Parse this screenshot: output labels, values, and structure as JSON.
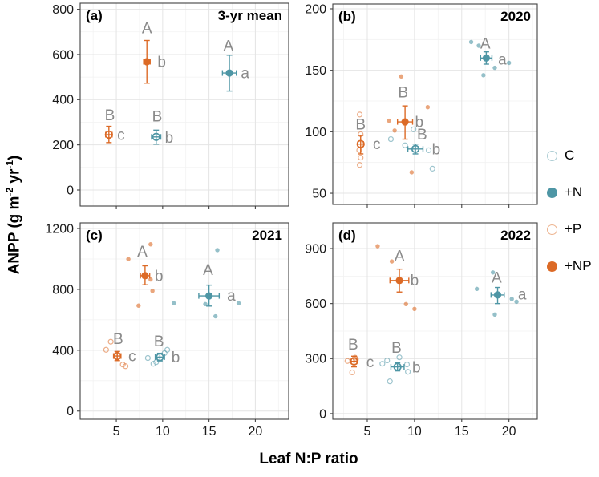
{
  "figure": {
    "xlabel": "Leaf N:P ratio",
    "ylabel": {
      "p0": "ANPP (g m",
      "s0": "-2",
      "p1": " yr",
      "s1": "-1",
      "p2": ")"
    }
  },
  "colors": {
    "teal": "#4E96A5",
    "orange": "#DC6A26",
    "teal_light": "#A9CBD2",
    "orange_light": "#EDB38E",
    "sig_letter": "#8A8A8A",
    "grid_major": "#E4E4E4",
    "grid_minor": "#F2F2F2",
    "axis_border": "#424242",
    "tick_text": "#1A1A1A",
    "title_text": "#000000"
  },
  "treatments": {
    "C": {
      "color": "teal",
      "filled": false
    },
    "+N": {
      "color": "teal",
      "filled": true
    },
    "+P": {
      "color": "orange",
      "filled": false
    },
    "+NP": {
      "color": "orange",
      "filled": true
    }
  },
  "legend": {
    "items": [
      {
        "label": "C",
        "treatment": "C"
      },
      {
        "label": "+N",
        "treatment": "+N"
      },
      {
        "label": "+P",
        "treatment": "+P"
      },
      {
        "label": "+NP",
        "treatment": "+NP"
      }
    ]
  },
  "chart_data": [
    {
      "id": "a",
      "tag": "(a)",
      "title": "3-yr mean",
      "type": "scatter",
      "xlim": [
        1.1,
        23.6
      ],
      "ylim": [
        -71,
        827
      ],
      "xticks": [
        5,
        10,
        15,
        20
      ],
      "yticks": [
        0,
        200,
        400,
        600,
        800
      ],
      "xtick_labels_visible": false,
      "means": [
        {
          "treatment": "+P",
          "x": 4.2,
          "y": 245,
          "ylo": 210,
          "yhi": 282,
          "xlo": 3.85,
          "xhi": 4.55,
          "letters": [
            {
              "text": "B",
              "x": 4.3,
              "y": 332
            },
            {
              "text": "c",
              "x": 5.5,
              "y": 245
            }
          ]
        },
        {
          "treatment": "+NP",
          "x": 8.3,
          "y": 568,
          "ylo": 473,
          "yhi": 662,
          "xlo": 7.95,
          "xhi": 8.65,
          "letters": [
            {
              "text": "A",
              "x": 8.3,
              "y": 717
            },
            {
              "text": "b",
              "x": 9.9,
              "y": 568
            }
          ]
        },
        {
          "treatment": "C",
          "x": 9.3,
          "y": 235,
          "ylo": 203,
          "yhi": 265,
          "xlo": 8.8,
          "xhi": 9.8,
          "letters": [
            {
              "text": "B",
              "x": 9.4,
              "y": 327
            },
            {
              "text": "b",
              "x": 10.7,
              "y": 233
            }
          ]
        },
        {
          "treatment": "+N",
          "x": 17.2,
          "y": 518,
          "ylo": 438,
          "yhi": 597,
          "xlo": 16.45,
          "xhi": 17.95,
          "letters": [
            {
              "text": "A",
              "x": 17.1,
              "y": 638
            },
            {
              "text": "a",
              "x": 18.9,
              "y": 518
            }
          ]
        }
      ],
      "points": []
    },
    {
      "id": "b",
      "tag": "(b)",
      "title": "2020",
      "type": "scatter",
      "xlim": [
        1.35,
        23.0
      ],
      "ylim": [
        40.9,
        203.9
      ],
      "xticks": [
        5,
        10,
        15,
        20
      ],
      "yticks": [
        50,
        100,
        150,
        200
      ],
      "xtick_labels_visible": false,
      "means": [
        {
          "treatment": "+P",
          "x": 4.3,
          "y": 90,
          "ylo": 82,
          "yhi": 97,
          "xlo": 4.0,
          "xhi": 4.6,
          "letters": [
            {
              "text": "B",
              "x": 4.3,
              "y": 106
            },
            {
              "text": "c",
              "x": 6.0,
              "y": 90
            }
          ]
        },
        {
          "treatment": "+NP",
          "x": 9.0,
          "y": 108,
          "ylo": 94,
          "yhi": 121,
          "xlo": 8.2,
          "xhi": 9.8,
          "letters": [
            {
              "text": "B",
              "x": 8.8,
              "y": 132
            },
            {
              "text": "b",
              "x": 10.5,
              "y": 108
            }
          ]
        },
        {
          "treatment": "C",
          "x": 10.1,
          "y": 86,
          "ylo": 82,
          "yhi": 90,
          "xlo": 9.3,
          "xhi": 10.9,
          "letters": [
            {
              "text": "B",
              "x": 10.8,
              "y": 98
            },
            {
              "text": "b",
              "x": 12.3,
              "y": 86
            }
          ]
        },
        {
          "treatment": "+N",
          "x": 17.6,
          "y": 160,
          "ylo": 155,
          "yhi": 165,
          "xlo": 17.0,
          "xhi": 18.2,
          "letters": [
            {
              "text": "A",
              "x": 17.5,
              "y": 172
            },
            {
              "text": "a",
              "x": 19.3,
              "y": 159
            }
          ]
        }
      ],
      "points": [
        {
          "treatment": "+P",
          "x": 4.2,
          "y": 114
        },
        {
          "treatment": "+P",
          "x": 4.3,
          "y": 98
        },
        {
          "treatment": "+P",
          "x": 4.15,
          "y": 85
        },
        {
          "treatment": "+P",
          "x": 4.3,
          "y": 79
        },
        {
          "treatment": "+P",
          "x": 4.2,
          "y": 73
        },
        {
          "treatment": "+NP",
          "x": 7.3,
          "y": 109
        },
        {
          "treatment": "+NP",
          "x": 7.9,
          "y": 101
        },
        {
          "treatment": "+NP",
          "x": 8.6,
          "y": 145
        },
        {
          "treatment": "+NP",
          "x": 11.4,
          "y": 120
        },
        {
          "treatment": "+NP",
          "x": 9.7,
          "y": 67
        },
        {
          "treatment": "C",
          "x": 7.5,
          "y": 94
        },
        {
          "treatment": "C",
          "x": 9.9,
          "y": 102
        },
        {
          "treatment": "C",
          "x": 11.5,
          "y": 85
        },
        {
          "treatment": "C",
          "x": 11.9,
          "y": 70
        },
        {
          "treatment": "C",
          "x": 9.0,
          "y": 89
        },
        {
          "treatment": "+N",
          "x": 16.0,
          "y": 173
        },
        {
          "treatment": "+N",
          "x": 16.8,
          "y": 170
        },
        {
          "treatment": "+N",
          "x": 17.3,
          "y": 146
        },
        {
          "treatment": "+N",
          "x": 18.5,
          "y": 152
        },
        {
          "treatment": "+N",
          "x": 20.0,
          "y": 156
        }
      ]
    },
    {
      "id": "c",
      "tag": "(c)",
      "title": "2021",
      "type": "scatter",
      "xlim": [
        1.1,
        23.6
      ],
      "ylim": [
        -54,
        1237
      ],
      "xticks": [
        5,
        10,
        15,
        20
      ],
      "yticks": [
        0,
        400,
        800,
        1200
      ],
      "xtick_labels_visible": true,
      "means": [
        {
          "treatment": "+P",
          "x": 5.1,
          "y": 362,
          "ylo": 332,
          "yhi": 392,
          "xlo": 4.7,
          "xhi": 5.5,
          "letters": [
            {
              "text": "B",
              "x": 5.2,
              "y": 475
            },
            {
              "text": "c",
              "x": 6.7,
              "y": 362
            }
          ]
        },
        {
          "treatment": "+NP",
          "x": 8.1,
          "y": 890,
          "ylo": 830,
          "yhi": 955,
          "xlo": 7.6,
          "xhi": 8.6,
          "letters": [
            {
              "text": "A",
              "x": 7.8,
              "y": 1050
            },
            {
              "text": "b",
              "x": 9.6,
              "y": 890
            }
          ]
        },
        {
          "treatment": "C",
          "x": 9.7,
          "y": 355,
          "ylo": 330,
          "yhi": 380,
          "xlo": 9.2,
          "xhi": 10.2,
          "letters": [
            {
              "text": "B",
              "x": 9.6,
              "y": 460
            },
            {
              "text": "b",
              "x": 11.4,
              "y": 355
            }
          ]
        },
        {
          "treatment": "+N",
          "x": 15.0,
          "y": 757,
          "ylo": 690,
          "yhi": 828,
          "xlo": 13.9,
          "xhi": 16.1,
          "letters": [
            {
              "text": "A",
              "x": 14.9,
              "y": 928
            },
            {
              "text": "a",
              "x": 17.4,
              "y": 760
            }
          ]
        }
      ],
      "points": [
        {
          "treatment": "+P",
          "x": 4.4,
          "y": 456
        },
        {
          "treatment": "+P",
          "x": 3.9,
          "y": 403
        },
        {
          "treatment": "+P",
          "x": 5.7,
          "y": 306
        },
        {
          "treatment": "+P",
          "x": 6.0,
          "y": 295
        },
        {
          "treatment": "+NP",
          "x": 6.3,
          "y": 999
        },
        {
          "treatment": "+NP",
          "x": 8.7,
          "y": 1096
        },
        {
          "treatment": "+NP",
          "x": 8.7,
          "y": 865
        },
        {
          "treatment": "+NP",
          "x": 8.9,
          "y": 790
        },
        {
          "treatment": "+NP",
          "x": 7.4,
          "y": 693
        },
        {
          "treatment": "C",
          "x": 8.4,
          "y": 349
        },
        {
          "treatment": "C",
          "x": 9.0,
          "y": 311
        },
        {
          "treatment": "C",
          "x": 10.2,
          "y": 381
        },
        {
          "treatment": "C",
          "x": 10.5,
          "y": 403
        },
        {
          "treatment": "C",
          "x": 9.3,
          "y": 322
        },
        {
          "treatment": "+N",
          "x": 15.9,
          "y": 1058
        },
        {
          "treatment": "+N",
          "x": 11.2,
          "y": 709
        },
        {
          "treatment": "+N",
          "x": 14.6,
          "y": 703
        },
        {
          "treatment": "+N",
          "x": 18.2,
          "y": 709
        },
        {
          "treatment": "+N",
          "x": 15.7,
          "y": 623
        }
      ]
    },
    {
      "id": "d",
      "tag": "(d)",
      "title": "2022",
      "type": "scatter",
      "xlim": [
        1.35,
        23.0
      ],
      "ylim": [
        -31,
        1040
      ],
      "xticks": [
        5,
        10,
        15,
        20
      ],
      "yticks": [
        0,
        300,
        600,
        900
      ],
      "xtick_labels_visible": true,
      "means": [
        {
          "treatment": "+P",
          "x": 3.6,
          "y": 285,
          "ylo": 255,
          "yhi": 313,
          "xlo": 3.3,
          "xhi": 3.9,
          "letters": [
            {
              "text": "B",
              "x": 3.5,
              "y": 378
            },
            {
              "text": "c",
              "x": 5.3,
              "y": 282
            }
          ]
        },
        {
          "treatment": "+NP",
          "x": 8.4,
          "y": 726,
          "ylo": 663,
          "yhi": 788,
          "xlo": 7.4,
          "xhi": 9.4,
          "letters": [
            {
              "text": "A",
              "x": 8.4,
              "y": 860
            },
            {
              "text": "b",
              "x": 10.0,
              "y": 728
            }
          ]
        },
        {
          "treatment": "C",
          "x": 8.2,
          "y": 255,
          "ylo": 233,
          "yhi": 277,
          "xlo": 7.5,
          "xhi": 8.9,
          "letters": [
            {
              "text": "B",
              "x": 8.1,
              "y": 360
            },
            {
              "text": "b",
              "x": 10.2,
              "y": 252
            }
          ]
        },
        {
          "treatment": "+N",
          "x": 18.8,
          "y": 647,
          "ylo": 600,
          "yhi": 688,
          "xlo": 18.1,
          "xhi": 19.5,
          "letters": [
            {
              "text": "A",
              "x": 18.7,
              "y": 742
            },
            {
              "text": "a",
              "x": 21.4,
              "y": 650
            }
          ]
        }
      ],
      "points": [
        {
          "treatment": "+P",
          "x": 2.9,
          "y": 287
        },
        {
          "treatment": "+P",
          "x": 3.7,
          "y": 305
        },
        {
          "treatment": "+P",
          "x": 3.4,
          "y": 225
        },
        {
          "treatment": "+P",
          "x": 3.8,
          "y": 295
        },
        {
          "treatment": "+NP",
          "x": 6.1,
          "y": 913
        },
        {
          "treatment": "+NP",
          "x": 7.6,
          "y": 830
        },
        {
          "treatment": "+NP",
          "x": 9.1,
          "y": 597
        },
        {
          "treatment": "+NP",
          "x": 10.0,
          "y": 571
        },
        {
          "treatment": "C",
          "x": 6.6,
          "y": 272
        },
        {
          "treatment": "C",
          "x": 7.1,
          "y": 290
        },
        {
          "treatment": "C",
          "x": 8.4,
          "y": 307
        },
        {
          "treatment": "C",
          "x": 9.2,
          "y": 268
        },
        {
          "treatment": "C",
          "x": 9.3,
          "y": 228
        },
        {
          "treatment": "C",
          "x": 7.4,
          "y": 176
        },
        {
          "treatment": "+N",
          "x": 18.3,
          "y": 770
        },
        {
          "treatment": "+N",
          "x": 16.6,
          "y": 680
        },
        {
          "treatment": "+N",
          "x": 18.5,
          "y": 540
        },
        {
          "treatment": "+N",
          "x": 20.3,
          "y": 625
        },
        {
          "treatment": "+N",
          "x": 20.8,
          "y": 610
        }
      ]
    }
  ]
}
